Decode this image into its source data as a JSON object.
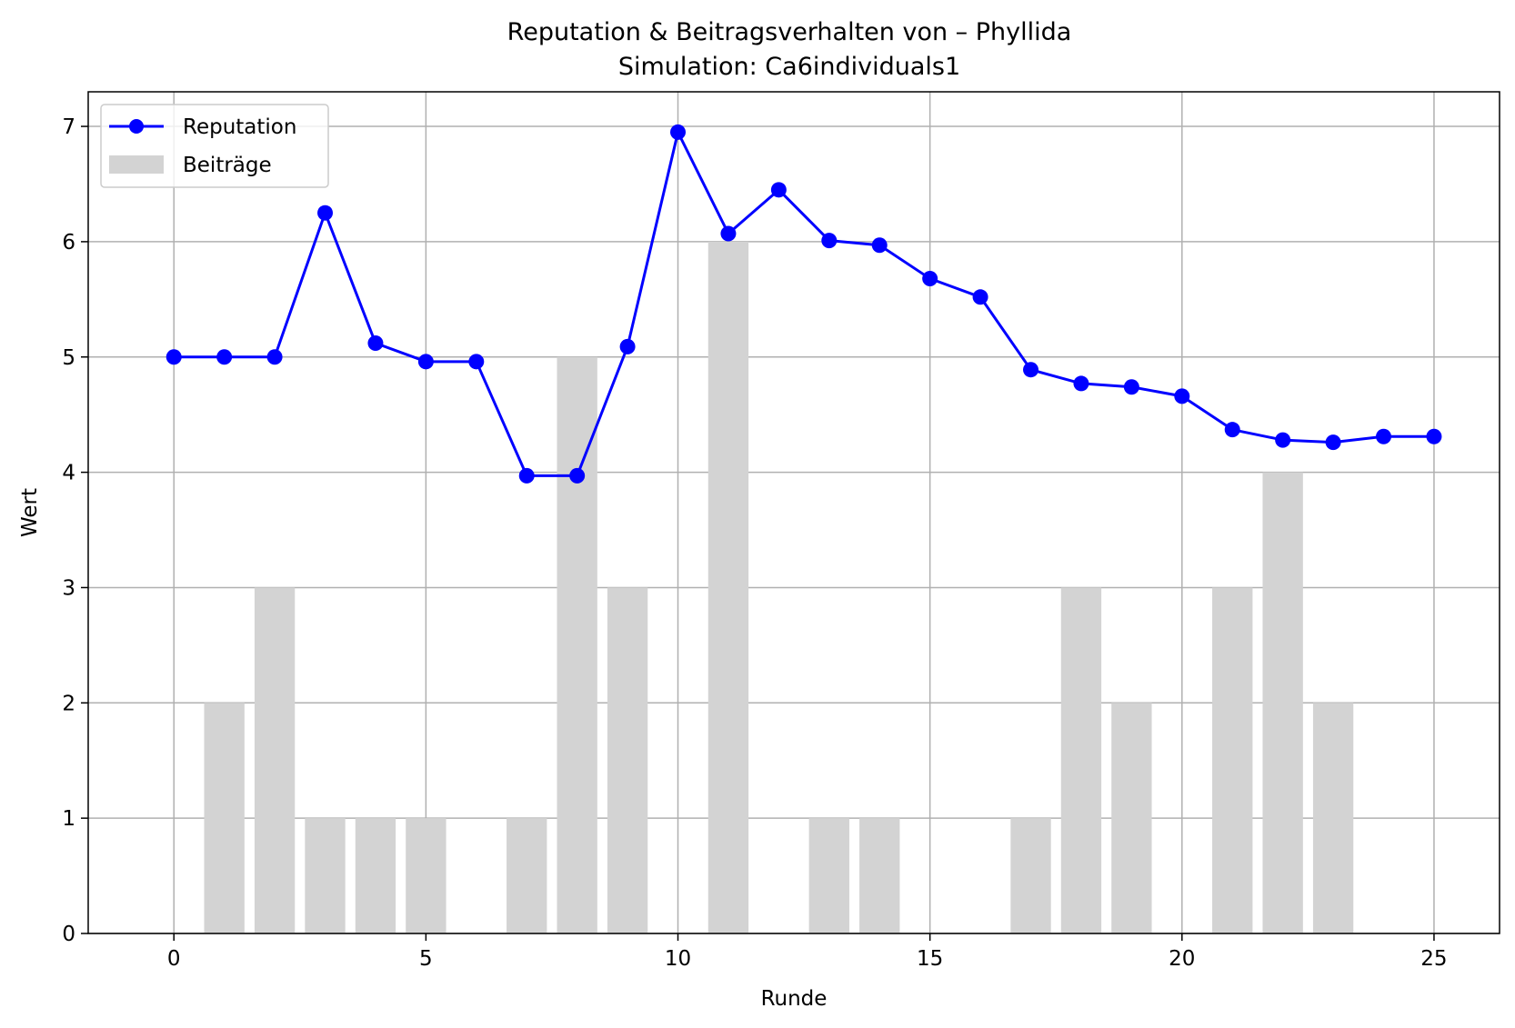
{
  "chart_data": {
    "type": "line",
    "title": "Reputation & Beitragsverhalten von – Phyllida",
    "subtitle": "Simulation: Ca6individuals1",
    "xlabel": "Runde",
    "ylabel": "Wert",
    "xlim": [
      -1.7,
      26.3
    ],
    "ylim": [
      0,
      7.3
    ],
    "xticks": [
      0,
      5,
      10,
      15,
      20,
      25
    ],
    "yticks": [
      0,
      1,
      2,
      3,
      4,
      5,
      6,
      7
    ],
    "grid": true,
    "legend_position": "top-left",
    "series": [
      {
        "name": "Reputation",
        "kind": "line",
        "color": "#0000ff",
        "marker": "circle",
        "x": [
          0,
          1,
          2,
          3,
          4,
          5,
          6,
          7,
          8,
          9,
          10,
          11,
          12,
          13,
          14,
          15,
          16,
          17,
          18,
          19,
          20,
          21,
          22,
          23,
          24,
          25
        ],
        "values": [
          5.0,
          5.0,
          5.0,
          6.25,
          5.12,
          4.96,
          4.96,
          3.97,
          3.97,
          5.09,
          6.95,
          6.07,
          6.45,
          6.01,
          5.97,
          5.68,
          5.52,
          4.89,
          4.77,
          4.74,
          4.66,
          4.37,
          4.28,
          4.26,
          4.31,
          4.31
        ]
      },
      {
        "name": "Beiträge",
        "kind": "bar",
        "color": "#d3d3d3",
        "x": [
          0,
          1,
          2,
          3,
          4,
          5,
          6,
          7,
          8,
          9,
          10,
          11,
          12,
          13,
          14,
          15,
          16,
          17,
          18,
          19,
          20,
          21,
          22,
          23,
          24,
          25
        ],
        "values": [
          0,
          2,
          3,
          1,
          1,
          1,
          0,
          1,
          5,
          3,
          0,
          6,
          0,
          1,
          1,
          0,
          0,
          1,
          3,
          2,
          0,
          3,
          4,
          2,
          0,
          0
        ]
      }
    ]
  }
}
